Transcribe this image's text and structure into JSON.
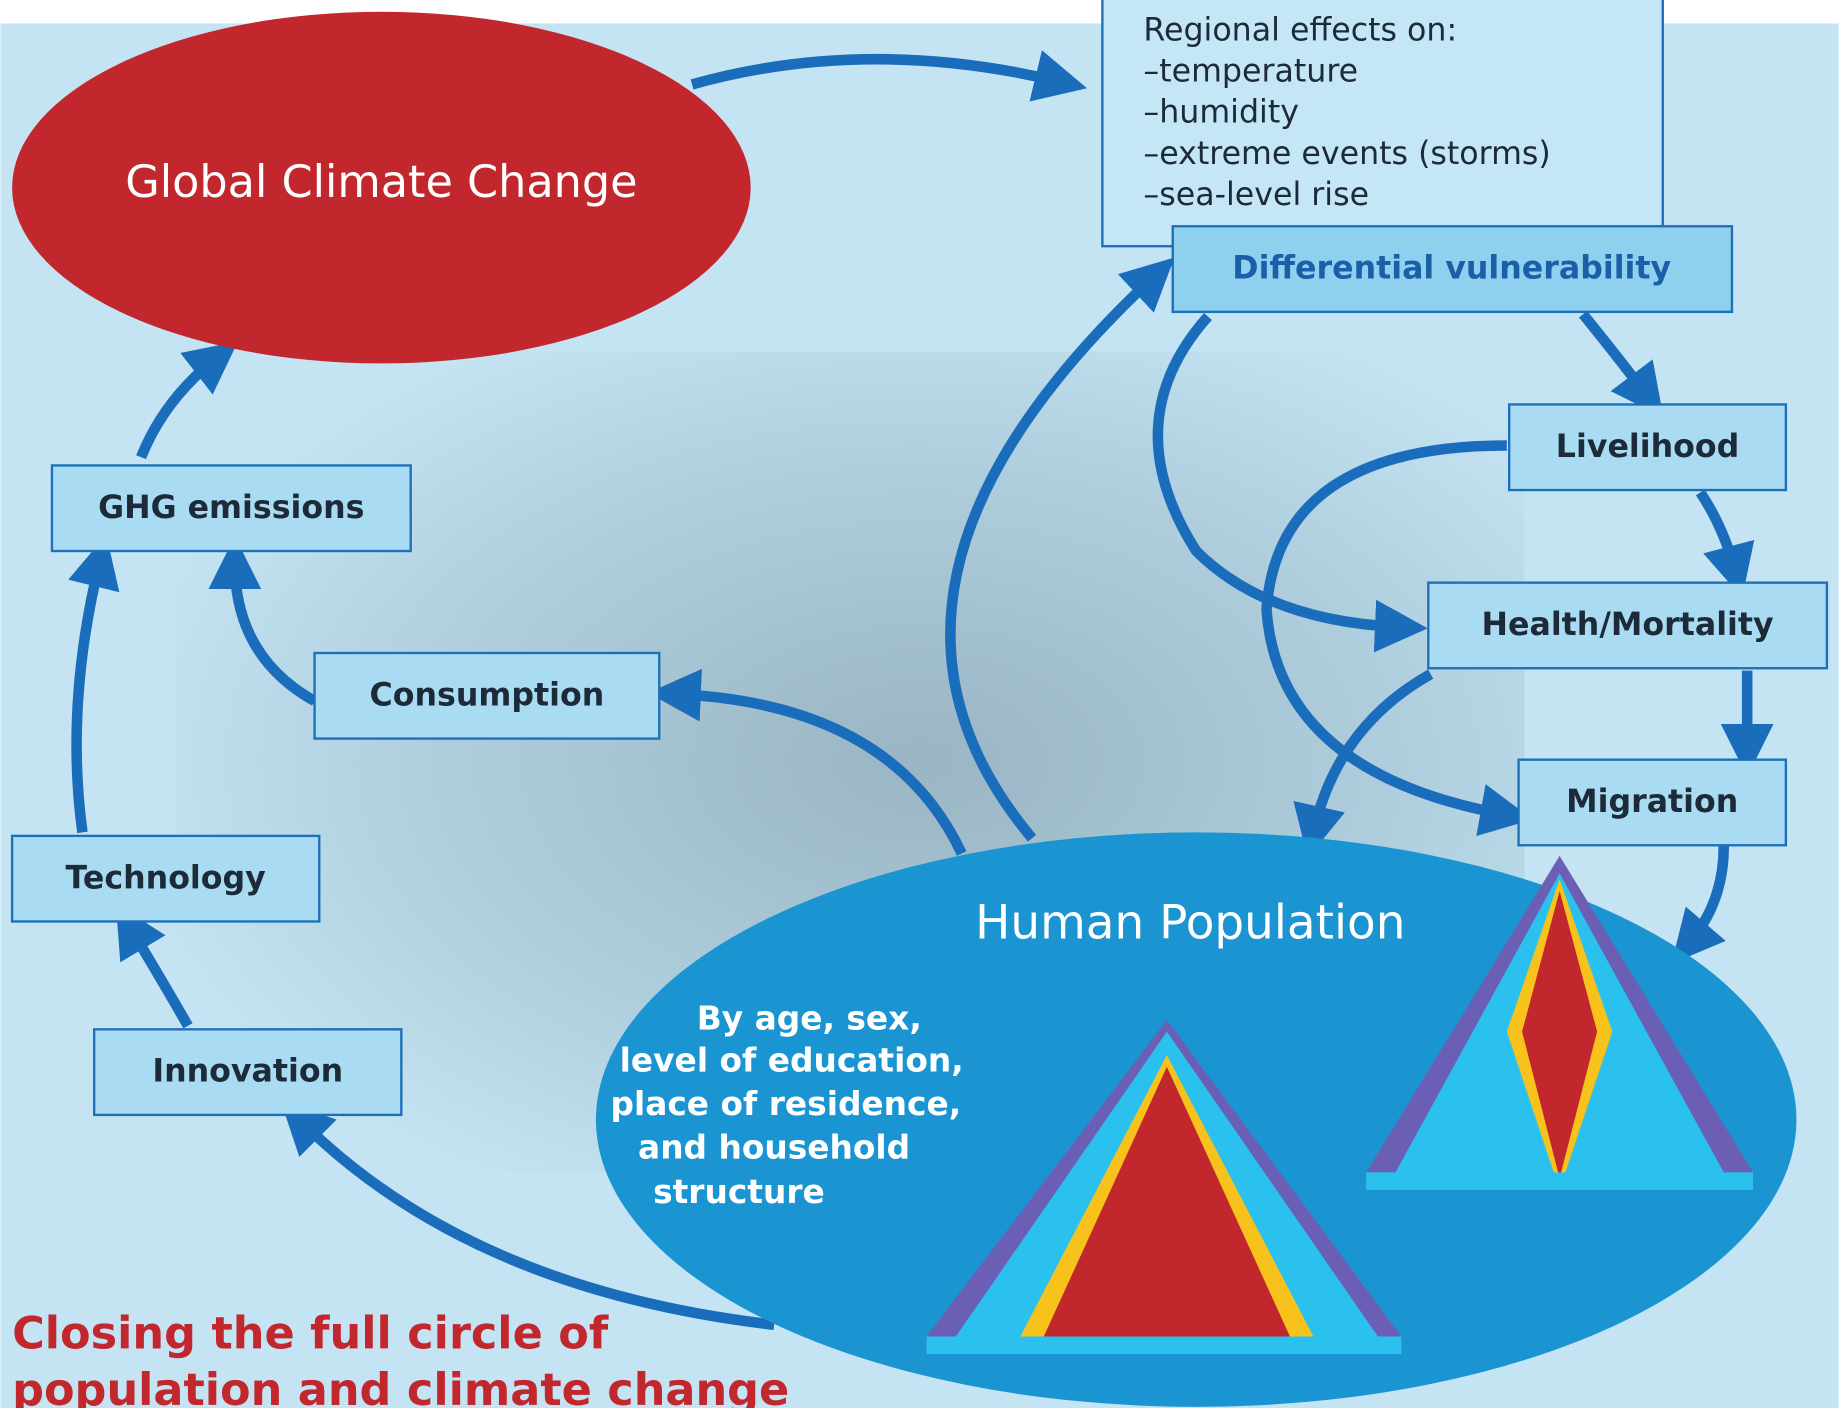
{
  "nodes": {
    "global_climate_change": "Global Climate Change",
    "regional_effects": {
      "title": "Regional effects on:",
      "items": [
        "–temperature",
        "–humidity",
        "–extreme events (storms)",
        "–sea-level rise"
      ]
    },
    "differential_vulnerability": "Differential vulnerability",
    "livelihood": "Livelihood",
    "health_mortality": "Health/Mortality",
    "migration": "Migration",
    "human_population": "Human Population",
    "population_description": [
      "By age, sex,",
      "level of education,",
      "place of residence,",
      "and household",
      "structure"
    ],
    "ghg_emissions": "GHG emissions",
    "consumption": "Consumption",
    "technology": "Technology",
    "innovation": "Innovation"
  },
  "caption": [
    "Closing the full circle of",
    "population and climate change"
  ]
}
